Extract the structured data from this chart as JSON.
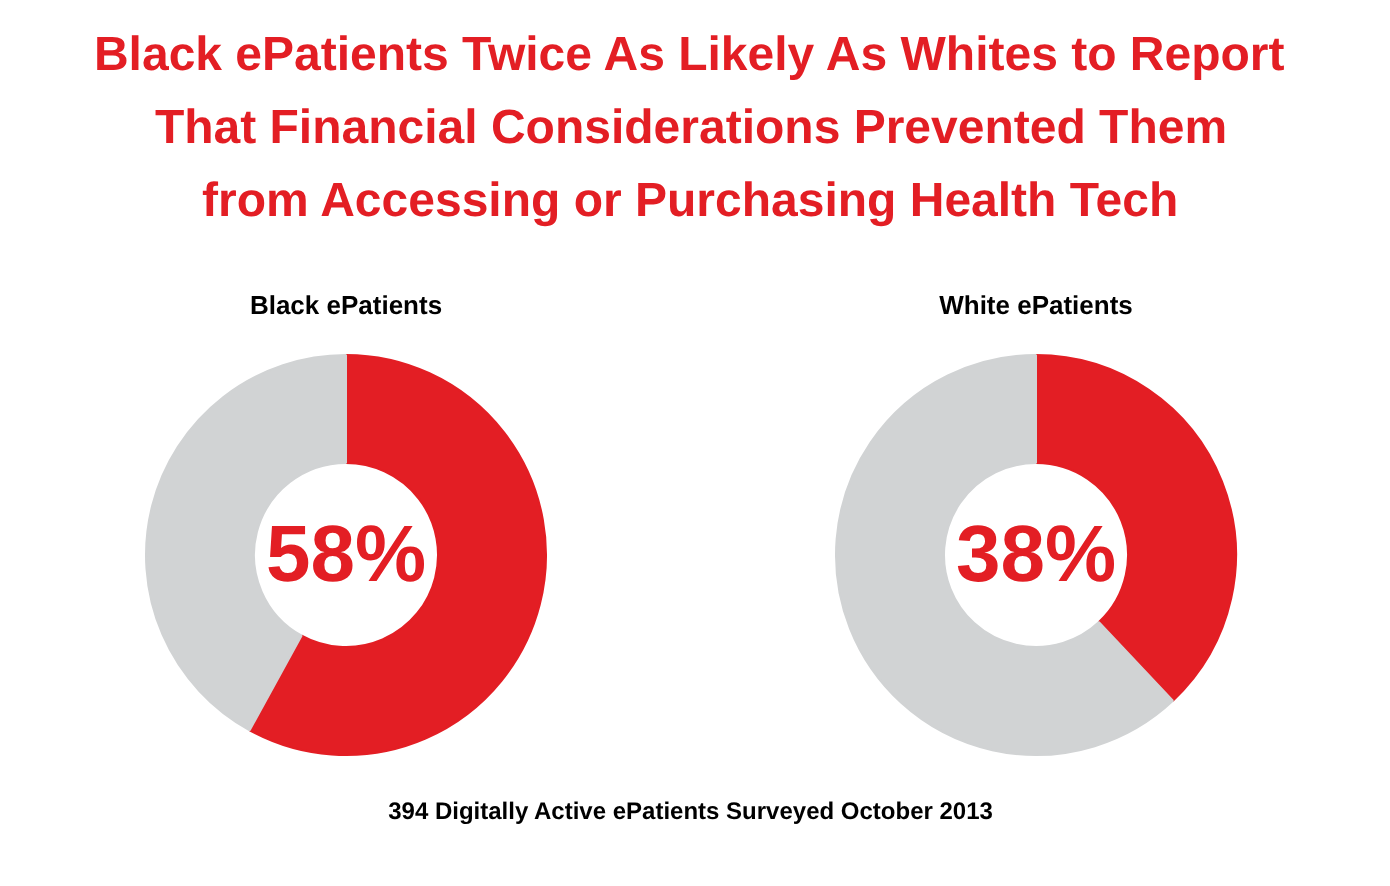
{
  "chart_data": [
    {
      "type": "other",
      "title": "Black ePatients Twice As Likely As Whites to Report\nThat Financial Considerations Prevented Them\nfrom Accessing or Purchasing Health Tech"
    },
    {
      "type": "donut",
      "title": "Black ePatients",
      "categories": [
        null,
        null
      ],
      "values": [
        58,
        42
      ],
      "colors": [
        "#e31e24",
        "#d1d3d4"
      ],
      "value_labels": [
        "58%",
        null
      ]
    },
    {
      "type": "donut",
      "title": "White ePatients",
      "categories": [
        null,
        null
      ],
      "values": [
        38,
        62
      ],
      "colors": [
        "#e31e24",
        "#d1d3d4"
      ],
      "value_labels": [
        "38%",
        null
      ]
    },
    {
      "type": "other",
      "annotations": [
        "394 Digitally Active ePatients Surveyed October 2013"
      ]
    }
  ]
}
